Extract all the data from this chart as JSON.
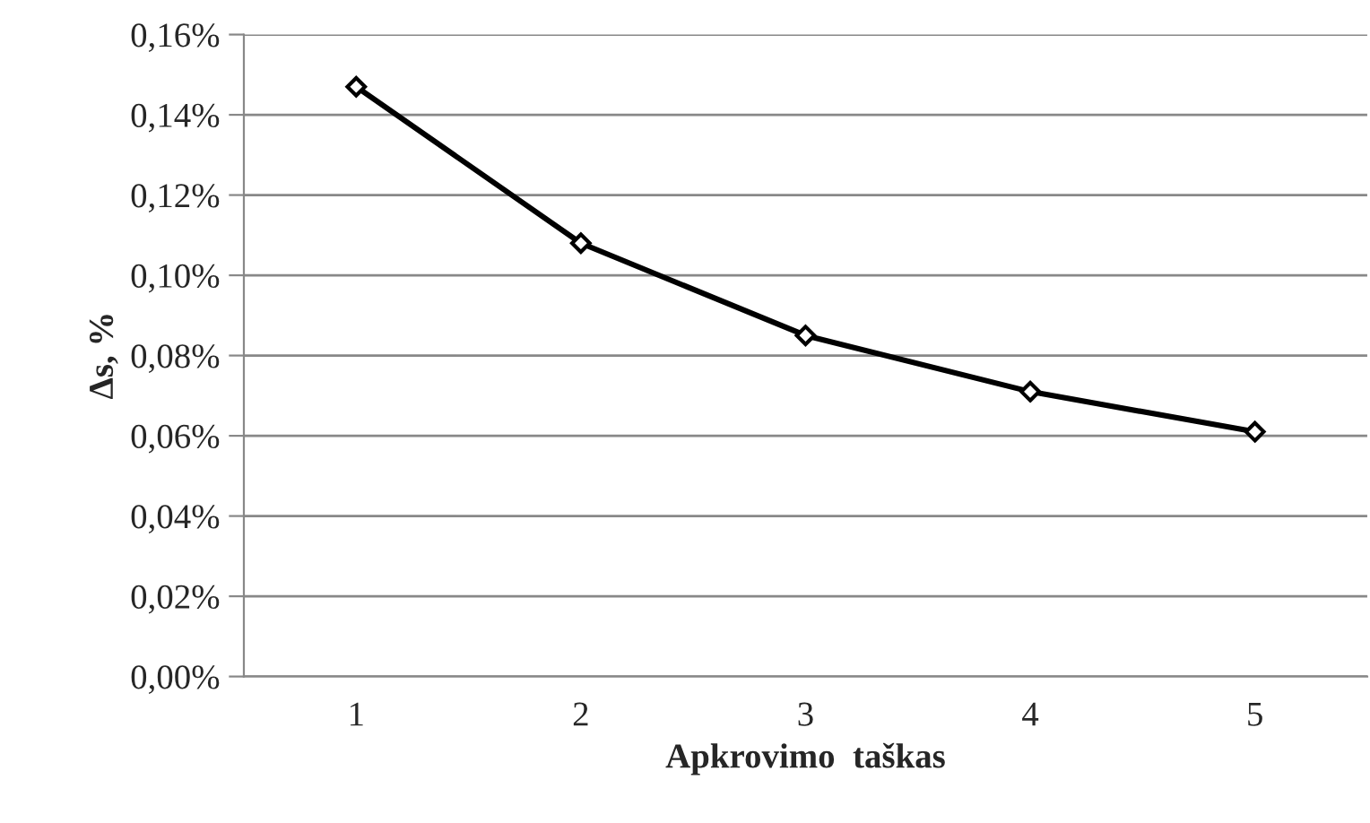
{
  "chart_data": {
    "type": "line",
    "xlabel": "Apkrovimo  taškas",
    "ylabel": "Δs, %",
    "categories": [
      "1",
      "2",
      "3",
      "4",
      "5"
    ],
    "series": [
      {
        "color": "#000000",
        "values": [
          0.147,
          0.108,
          0.085,
          0.071,
          0.061
        ]
      }
    ],
    "ylim": [
      0,
      0.16
    ],
    "yticks": [
      {
        "value": 0,
        "label": "0,00%"
      },
      {
        "value": 0.02,
        "label": "0,02%"
      },
      {
        "value": 0.04,
        "label": "0,04%"
      },
      {
        "value": 0.06,
        "label": "0,06%"
      },
      {
        "value": 0.08,
        "label": "0,08%"
      },
      {
        "value": 0.1,
        "label": "0,10%"
      },
      {
        "value": 0.12,
        "label": "0,12%"
      },
      {
        "value": 0.14,
        "label": "0,14%"
      },
      {
        "value": 0.16,
        "label": "0,16%"
      }
    ],
    "grid": "y",
    "marker": "diamond",
    "line_style": "solid",
    "legend": false
  }
}
